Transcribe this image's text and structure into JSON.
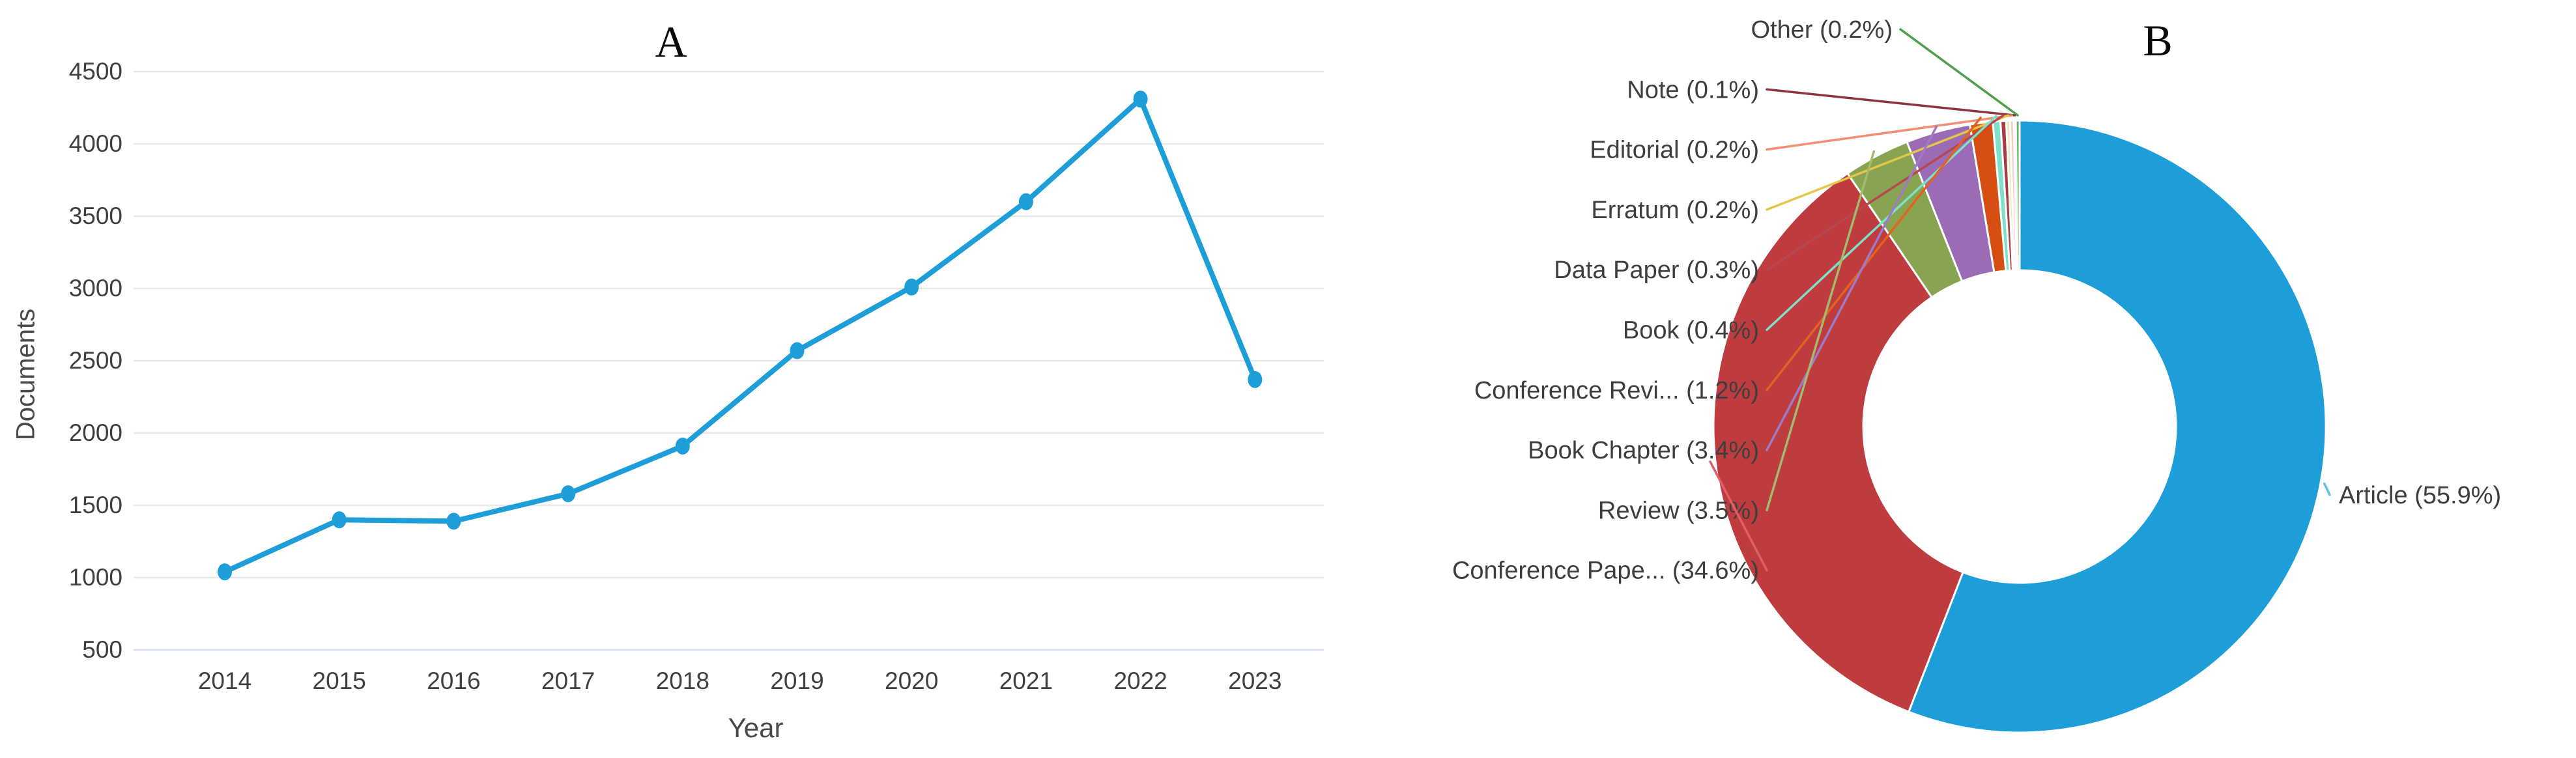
{
  "figure": {
    "background": "#ffffff",
    "panel_a_title": "A",
    "panel_b_title": "B"
  },
  "chart_data": [
    {
      "type": "line",
      "title": "A",
      "xlabel": "Year",
      "ylabel": "Documents",
      "x": [
        2014,
        2015,
        2016,
        2017,
        2018,
        2019,
        2020,
        2021,
        2022,
        2023
      ],
      "values": [
        1040,
        1400,
        1390,
        1580,
        1910,
        2570,
        3010,
        3600,
        4310,
        2370
      ],
      "ylim": [
        500,
        4500
      ],
      "yticks": [
        500,
        1000,
        1500,
        2000,
        2500,
        3000,
        3500,
        4000,
        4500
      ],
      "grid": true,
      "legend": "none",
      "line_color": "#1d9ed9",
      "marker": "circle",
      "gridline_color": "#e8e8e8",
      "baseline_color": "#dbe0f2",
      "tick_color": "#3f3f3f"
    },
    {
      "type": "pie",
      "title": "B",
      "donut": true,
      "start_angle_deg": 0,
      "direction": "clockwise",
      "label_color": "#3e3e3e",
      "slices": [
        {
          "label": "Article",
          "display": "Article (55.9%)",
          "value": 55.9,
          "color": "#1d9ed9",
          "leader_color": "#5fc0ea",
          "label_side": "right"
        },
        {
          "label": "Conference Paper",
          "display": "Conference Pape... (34.6%)",
          "value": 34.6,
          "color": "#bf3c3e",
          "leader_color": "#df5f62",
          "label_side": "left"
        },
        {
          "label": "Review",
          "display": "Review (3.5%)",
          "value": 3.5,
          "color": "#89a450",
          "leader_color": "#a4ba6c",
          "label_side": "left"
        },
        {
          "label": "Book Chapter",
          "display": "Book Chapter (3.4%)",
          "value": 3.4,
          "color": "#9c6bb5",
          "leader_color": "#9f7ac9",
          "label_side": "left"
        },
        {
          "label": "Conference Review",
          "display": "Conference Revi... (1.2%)",
          "value": 1.2,
          "color": "#d64e12",
          "leader_color": "#e2631f",
          "label_side": "left"
        },
        {
          "label": "Book",
          "display": "Book (0.4%)",
          "value": 0.4,
          "color": "#7fe0ca",
          "leader_color": "#7fe0ca",
          "label_side": "left"
        },
        {
          "label": "Data Paper",
          "display": "Data Paper (0.3%)",
          "value": 0.3,
          "color": "#a93b44",
          "leader_color": "#b4474f",
          "label_side": "left"
        },
        {
          "label": "Erratum",
          "display": "Erratum (0.2%)",
          "value": 0.2,
          "color": "#efe5b4",
          "leader_color": "#e3c74b",
          "label_side": "left"
        },
        {
          "label": "Editorial",
          "display": "Editorial (0.2%)",
          "value": 0.2,
          "color": "#f3cdc2",
          "leader_color": "#f08f73",
          "label_side": "left"
        },
        {
          "label": "Note",
          "display": "Note (0.1%)",
          "value": 0.1,
          "color": "#8d3440",
          "leader_color": "#8d3440",
          "label_side": "left"
        },
        {
          "label": "Other",
          "display": "Other (0.2%)",
          "value": 0.2,
          "color": "#6ab26a",
          "leader_color": "#4ea04e",
          "label_side": "left"
        }
      ]
    }
  ]
}
